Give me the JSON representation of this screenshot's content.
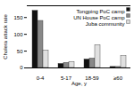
{
  "chart_data": {
    "type": "bar",
    "categories": [
      "0-4",
      "5-17",
      "18-59",
      "≥60"
    ],
    "series": [
      {
        "name": "Tongping PoC camp",
        "color": "#111111",
        "values": [
          170,
          12,
          25,
          3
        ]
      },
      {
        "name": "UN House PoC camp",
        "color": "#888888",
        "values": [
          140,
          15,
          28,
          3
        ]
      },
      {
        "name": "Juba community",
        "color": "#e0e0e0",
        "values": [
          52,
          18,
          68,
          35
        ]
      }
    ],
    "xlabel": "Age, y",
    "ylabel": "Cholera attack rate",
    "ylim": [
      0,
      185
    ],
    "yticks": [
      0,
      50,
      100,
      150
    ],
    "legend": "upper right"
  }
}
